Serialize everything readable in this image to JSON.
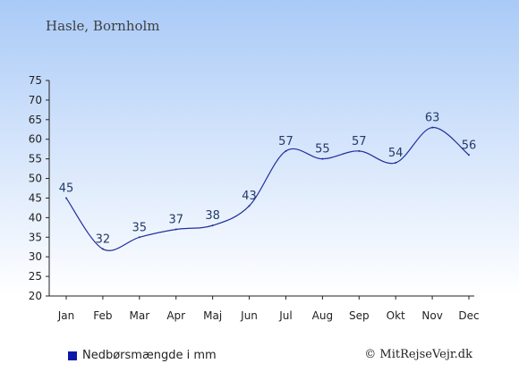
{
  "header": {
    "location": "Hasle, Bornholm"
  },
  "legend": {
    "label": "Nedbørsmængde i mm",
    "color": "#0a1aa6"
  },
  "footer": {
    "copyright": "© MitRejseVejr.dk"
  },
  "chart_data": {
    "type": "line",
    "title": "Hasle, Bornholm",
    "xlabel": "",
    "ylabel": "",
    "categories": [
      "Jan",
      "Feb",
      "Mar",
      "Apr",
      "Maj",
      "Jun",
      "Jul",
      "Aug",
      "Sep",
      "Okt",
      "Nov",
      "Dec"
    ],
    "series": [
      {
        "name": "Nedbørsmængde i mm",
        "values": [
          45,
          32,
          35,
          37,
          38,
          43,
          57,
          55,
          57,
          54,
          63,
          56
        ]
      }
    ],
    "ylim": [
      20,
      75
    ],
    "yticks": [
      20,
      25,
      30,
      35,
      40,
      45,
      50,
      55,
      60,
      65,
      70,
      75
    ],
    "line_color": "#1f2f9c",
    "grid": false,
    "legend_position": "bottom-left"
  }
}
